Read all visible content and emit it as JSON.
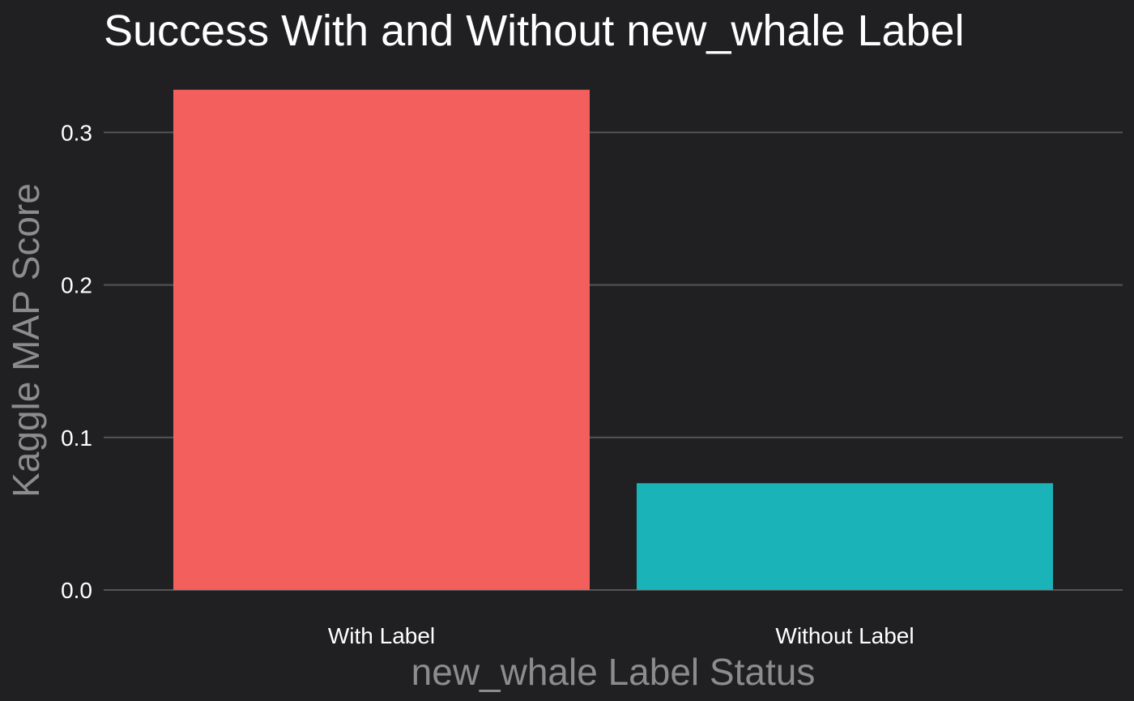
{
  "chart_data": {
    "type": "bar",
    "title": "Success With and Without new_whale Label",
    "xlabel": "new_whale Label Status",
    "ylabel": "Kaggle MAP Score",
    "categories": [
      "With Label",
      "Without Label"
    ],
    "values": [
      0.328,
      0.07
    ],
    "colors": [
      "#f25f5c",
      "#1ab3b8"
    ],
    "ylim": [
      0,
      0.34
    ],
    "yticks": [
      0.0,
      0.1,
      0.2,
      0.3
    ],
    "ytick_labels": [
      "0.0",
      "0.1",
      "0.2",
      "0.3"
    ],
    "grid": "horizontal",
    "legend": "none"
  }
}
